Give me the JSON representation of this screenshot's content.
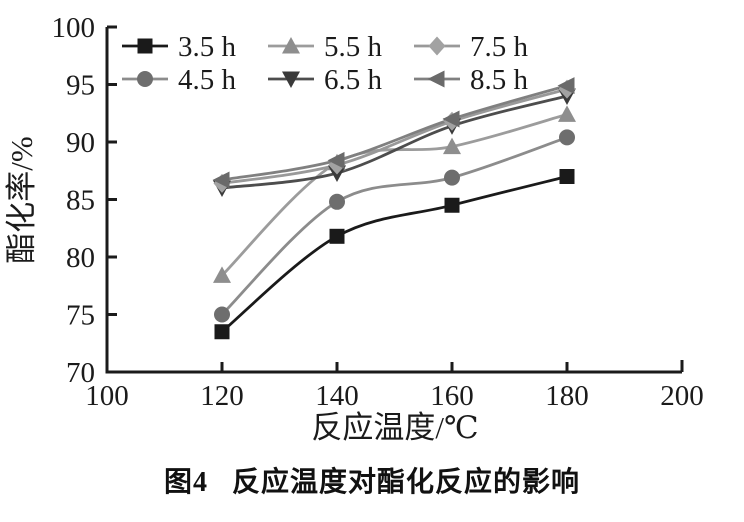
{
  "figure": {
    "caption_prefix": "图4",
    "caption_title": "反应温度对酯化反应的影响"
  },
  "chart_data": {
    "type": "line",
    "title": "",
    "xlabel": "反应温度/℃",
    "ylabel": "酯化率/%",
    "x": [
      120,
      140,
      160,
      180
    ],
    "xlim": [
      100,
      200
    ],
    "ylim": [
      70,
      100
    ],
    "x_ticks": [
      100,
      120,
      140,
      160,
      180,
      200
    ],
    "y_ticks": [
      70,
      75,
      80,
      85,
      90,
      95,
      100
    ],
    "grid": false,
    "legend_position": "top-left-inside",
    "series": [
      {
        "name": "3.5 h",
        "marker": "square",
        "color": "#1a1a1a",
        "line_color": "#1a1a1a",
        "values": [
          73.5,
          81.8,
          84.5,
          87.0
        ]
      },
      {
        "name": "4.5 h",
        "marker": "circle",
        "color": "#6e6e6e",
        "line_color": "#8c8c8c",
        "values": [
          75.0,
          84.8,
          86.9,
          90.4
        ]
      },
      {
        "name": "5.5 h",
        "marker": "triangle-up",
        "color": "#8e8e8e",
        "line_color": "#9c9c9c",
        "values": [
          78.4,
          88.2,
          89.6,
          92.4
        ]
      },
      {
        "name": "6.5 h",
        "marker": "triangle-down",
        "color": "#3a3a3a",
        "line_color": "#4d4d4d",
        "values": [
          86.0,
          87.3,
          91.4,
          94.0
        ]
      },
      {
        "name": "7.5 h",
        "marker": "diamond",
        "color": "#a2a2a2",
        "line_color": "#999999",
        "values": [
          86.4,
          88.0,
          91.8,
          94.6
        ]
      },
      {
        "name": "8.5 h",
        "marker": "triangle-left",
        "color": "#6a6a6a",
        "line_color": "#808080",
        "values": [
          86.7,
          88.4,
          92.0,
          94.9
        ]
      }
    ]
  }
}
